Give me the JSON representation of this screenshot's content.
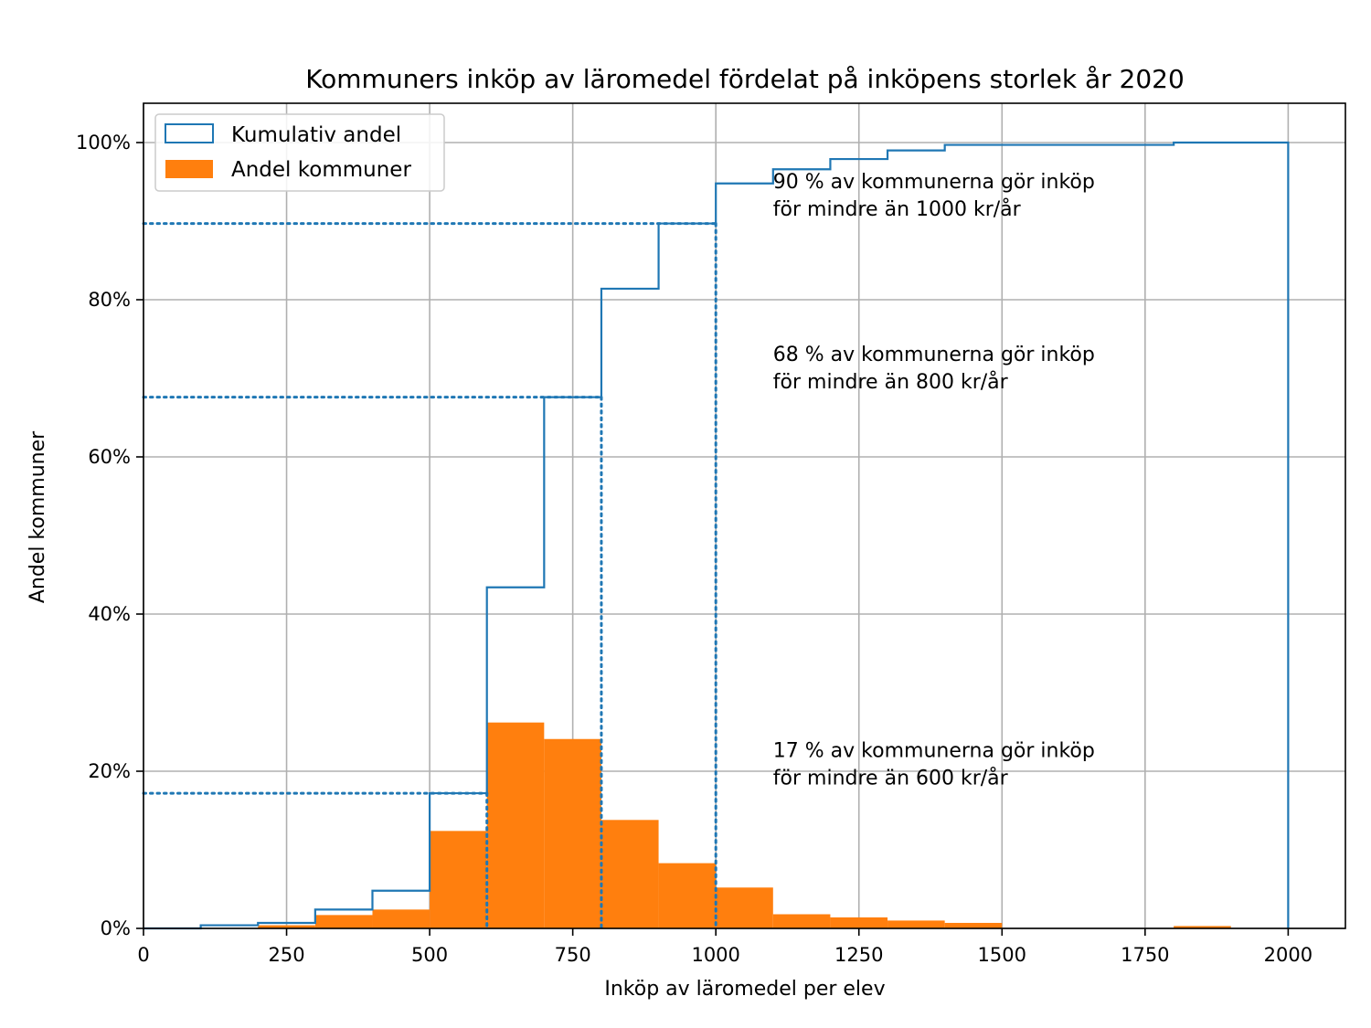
{
  "chart_data": {
    "type": "bar",
    "title": "Kommuners inköp av läromedel fördelat på inköpens storlek år 2020",
    "xlabel": "Inköp av läromedel per elev",
    "ylabel": "Andel kommuner",
    "xlim": [
      0,
      2100
    ],
    "ylim": [
      0,
      1.05
    ],
    "grid": true,
    "legend_position": "top-left",
    "xticks": [
      0,
      250,
      500,
      750,
      1000,
      1250,
      1500,
      1750,
      2000
    ],
    "xtick_labels": [
      "0",
      "250",
      "500",
      "750",
      "1000",
      "1250",
      "1500",
      "1750",
      "2000"
    ],
    "yticks": [
      0,
      0.2,
      0.4,
      0.6,
      0.8,
      1.0
    ],
    "ytick_labels": [
      "0%",
      "20%",
      "40%",
      "60%",
      "80%",
      "100%"
    ],
    "bin_edges": [
      0,
      100,
      200,
      300,
      400,
      500,
      600,
      700,
      800,
      900,
      1000,
      1100,
      1200,
      1300,
      1400,
      1500,
      1600,
      1700,
      1800,
      1900,
      2000
    ],
    "series": [
      {
        "name": "Kumulativ andel",
        "kind": "step",
        "color": "#1f77b4",
        "values": [
          0.0,
          0.004,
          0.007,
          0.024,
          0.048,
          0.172,
          0.434,
          0.676,
          0.814,
          0.897,
          0.948,
          0.966,
          0.979,
          0.99,
          0.997,
          0.997,
          0.997,
          0.997,
          1.0,
          1.0
        ]
      },
      {
        "name": "Andel kommuner",
        "kind": "bar",
        "color": "#ff7f0e",
        "values": [
          0.0,
          0.0,
          0.004,
          0.017,
          0.024,
          0.124,
          0.262,
          0.241,
          0.138,
          0.083,
          0.052,
          0.018,
          0.014,
          0.01,
          0.007,
          0.0,
          0.0,
          0.0,
          0.003,
          0.0
        ]
      }
    ],
    "reference_lines": [
      {
        "x": 600,
        "y": 0.172
      },
      {
        "x": 800,
        "y": 0.676
      },
      {
        "x": 1000,
        "y": 0.897
      }
    ],
    "annotations": [
      {
        "x": 1100,
        "y": 0.942,
        "lines": [
          "90 % av kommunerna gör inköp",
          "för mindre än 1000 kr/år"
        ]
      },
      {
        "x": 1100,
        "y": 0.722,
        "lines": [
          "68 % av kommunerna gör inköp",
          "för mindre än 800 kr/år"
        ]
      },
      {
        "x": 1100,
        "y": 0.218,
        "lines": [
          "17 % av kommunerna gör inköp",
          "för mindre än 600 kr/år"
        ]
      }
    ]
  }
}
